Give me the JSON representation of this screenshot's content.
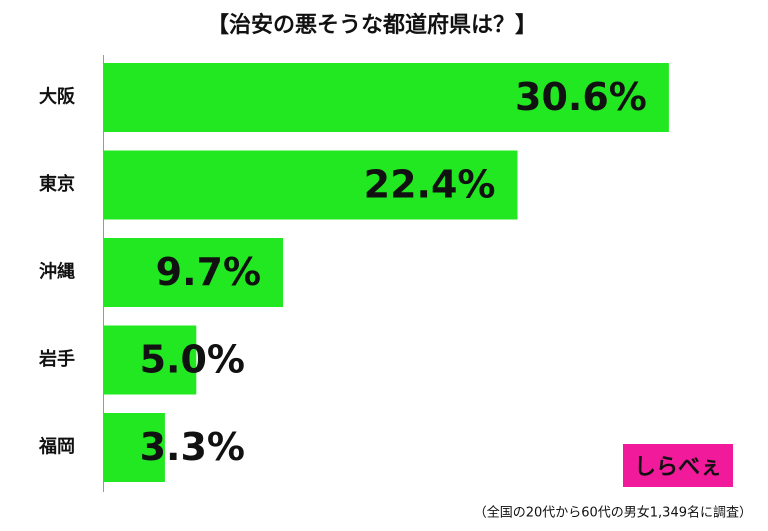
{
  "chart_data": {
    "type": "bar",
    "orientation": "horizontal",
    "title": "【治安の悪そうな都道府県は？】",
    "categories": [
      "大阪",
      "東京",
      "沖縄",
      "岩手",
      "福岡"
    ],
    "values": [
      30.6,
      22.4,
      9.7,
      5.0,
      3.3
    ],
    "value_labels": [
      "30.6%",
      "22.4%",
      "9.7%",
      "5.0%",
      "3.3%"
    ],
    "color": "#22e822",
    "note": "（全国の20代から60代の男女1,349名に調査）",
    "logo": "しらべぇ"
  }
}
